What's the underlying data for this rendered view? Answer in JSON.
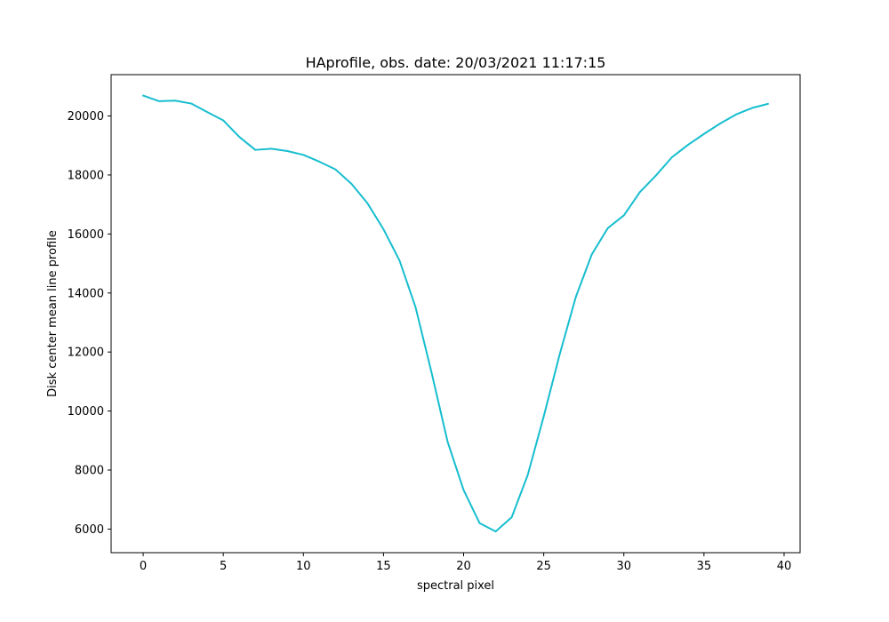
{
  "chart_data": {
    "type": "line",
    "title": "HAprofile, obs. date: 20/03/2021 11:17:15",
    "xlabel": "spectral pixel",
    "ylabel": "Disk center mean line profile",
    "xlim": [
      -2,
      41
    ],
    "ylim": [
      5200,
      21400
    ],
    "x_ticks": [
      0,
      5,
      10,
      15,
      20,
      25,
      30,
      35,
      40
    ],
    "y_ticks": [
      6000,
      8000,
      10000,
      12000,
      14000,
      16000,
      18000,
      20000
    ],
    "grid": false,
    "line_color": "#17becf",
    "series": [
      {
        "x": [
          0,
          1,
          2,
          3,
          4,
          5,
          6,
          7,
          8,
          9,
          10,
          11,
          12,
          13,
          14,
          15,
          16,
          17,
          18,
          19,
          20,
          21,
          22,
          23,
          24,
          25,
          26,
          27,
          28,
          29,
          30,
          31,
          32,
          33,
          34,
          35,
          36,
          37,
          38,
          39
        ],
        "values": [
          20690,
          20500,
          20520,
          20420,
          20130,
          19850,
          19290,
          18850,
          18890,
          18810,
          18680,
          18450,
          18190,
          17700,
          17040,
          16160,
          15100,
          13520,
          11300,
          8960,
          7320,
          6200,
          5920,
          6400,
          7830,
          9820,
          11930,
          13860,
          15310,
          16200,
          16630,
          17420,
          17980,
          18600,
          19020,
          19390,
          19740,
          20050,
          20270,
          20410
        ]
      }
    ]
  }
}
